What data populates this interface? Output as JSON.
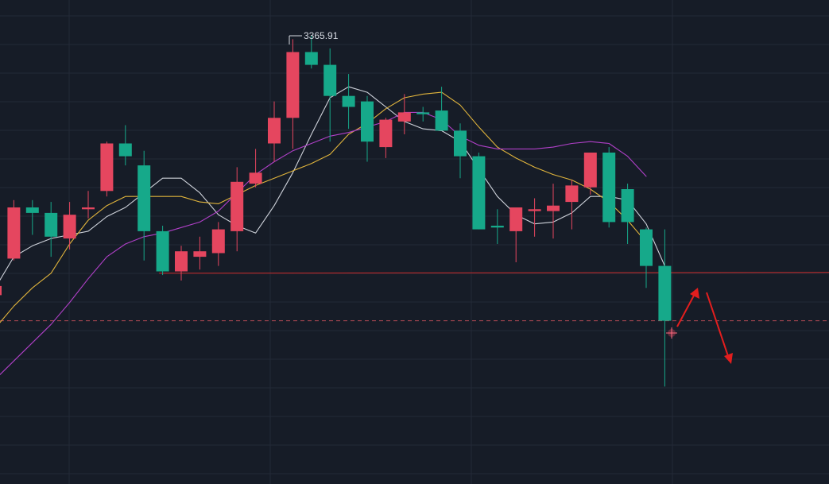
{
  "chart_data": {
    "type": "candlestick",
    "title": "",
    "xlabel": "",
    "ylabel": "",
    "background_color": "#161c27",
    "up_color": "#e5465f",
    "down_color": "#16a98a",
    "peak_label": "3365.91",
    "horizontal_level": {
      "value": 3236,
      "color": "#cc2b2b",
      "style": "solid"
    },
    "current_price_line": {
      "value": 3210,
      "color": "#b54a55",
      "style": "dashed"
    },
    "candles": [
      {
        "open": 3224,
        "high": 3232,
        "low": 3220,
        "close": 3229
      },
      {
        "open": 3244,
        "high": 3276,
        "low": 3243,
        "close": 3272
      },
      {
        "open": 3272,
        "high": 3276,
        "low": 3257,
        "close": 3269
      },
      {
        "open": 3269,
        "high": 3275,
        "low": 3245,
        "close": 3256
      },
      {
        "open": 3255,
        "high": 3275,
        "low": 3249,
        "close": 3268
      },
      {
        "open": 3271,
        "high": 3281,
        "low": 3266,
        "close": 3272
      },
      {
        "open": 3281,
        "high": 3308,
        "low": 3278,
        "close": 3307
      },
      {
        "open": 3307,
        "high": 3317,
        "low": 3295,
        "close": 3300
      },
      {
        "open": 3295,
        "high": 3303,
        "low": 3243,
        "close": 3259
      },
      {
        "open": 3259,
        "high": 3262,
        "low": 3235,
        "close": 3237
      },
      {
        "open": 3237,
        "high": 3251,
        "low": 3232,
        "close": 3248
      },
      {
        "open": 3245,
        "high": 3256,
        "low": 3238,
        "close": 3248
      },
      {
        "open": 3247,
        "high": 3264,
        "low": 3240,
        "close": 3260
      },
      {
        "open": 3259,
        "high": 3294,
        "low": 3248,
        "close": 3286
      },
      {
        "open": 3285,
        "high": 3304,
        "low": 3283,
        "close": 3291
      },
      {
        "open": 3307,
        "high": 3330,
        "low": 3297,
        "close": 3321
      },
      {
        "open": 3321,
        "high": 3364,
        "low": 3304,
        "close": 3357
      },
      {
        "open": 3357,
        "high": 3366,
        "low": 3348,
        "close": 3350
      },
      {
        "open": 3350,
        "high": 3359,
        "low": 3308,
        "close": 3333
      },
      {
        "open": 3333,
        "high": 3345,
        "low": 3315,
        "close": 3327
      },
      {
        "open": 3330,
        "high": 3333,
        "low": 3297,
        "close": 3308
      },
      {
        "open": 3305,
        "high": 3321,
        "low": 3299,
        "close": 3320
      },
      {
        "open": 3319,
        "high": 3334,
        "low": 3312,
        "close": 3324
      },
      {
        "open": 3324,
        "high": 3327,
        "low": 3319,
        "close": 3323
      },
      {
        "open": 3325,
        "high": 3338,
        "low": 3314,
        "close": 3314
      },
      {
        "open": 3314,
        "high": 3318,
        "low": 3288,
        "close": 3300
      },
      {
        "open": 3300,
        "high": 3302,
        "low": 3260,
        "close": 3260
      },
      {
        "open": 3262,
        "high": 3271,
        "low": 3252,
        "close": 3261
      },
      {
        "open": 3259,
        "high": 3272,
        "low": 3242,
        "close": 3272
      },
      {
        "open": 3270,
        "high": 3277,
        "low": 3256,
        "close": 3271
      },
      {
        "open": 3270,
        "high": 3285,
        "low": 3255,
        "close": 3273
      },
      {
        "open": 3275,
        "high": 3287,
        "low": 3260,
        "close": 3284
      },
      {
        "open": 3283,
        "high": 3302,
        "low": 3279,
        "close": 3302
      },
      {
        "open": 3302,
        "high": 3305,
        "low": 3261,
        "close": 3264
      },
      {
        "open": 3282,
        "high": 3285,
        "low": 3252,
        "close": 3264
      },
      {
        "open": 3260,
        "high": 3261,
        "low": 3228,
        "close": 3240
      },
      {
        "open": 3240,
        "high": 3260,
        "low": 3174,
        "close": 3210
      }
    ],
    "ma_lines": [
      {
        "color": "#cfd3db",
        "values": [
          3228,
          3245,
          3251,
          3255,
          3257,
          3259,
          3267,
          3272,
          3280,
          3288,
          3288,
          3280,
          3268,
          3262,
          3258,
          3273,
          3291,
          3312,
          3332,
          3338,
          3335,
          3327,
          3319,
          3315,
          3314,
          3308,
          3293,
          3278,
          3268,
          3263,
          3264,
          3269,
          3278,
          3278,
          3276,
          3263,
          3240
        ]
      },
      {
        "color": "#e0b43c",
        "values": [
          3206,
          3218,
          3228,
          3236,
          3252,
          3265,
          3273,
          3278,
          3278,
          3278,
          3278,
          3275,
          3274,
          3279,
          3284,
          3288,
          3292,
          3296,
          3301,
          3312,
          3318,
          3326,
          3332,
          3334,
          3335,
          3328,
          3316,
          3305,
          3299,
          3294,
          3290,
          3287,
          3282,
          3275,
          3265,
          3253
        ]
      },
      {
        "color": "#b040c8",
        "values": [
          3178,
          3188,
          3198,
          3208,
          3220,
          3233,
          3245,
          3252,
          3256,
          3258,
          3261,
          3264,
          3270,
          3280,
          3290,
          3297,
          3303,
          3307,
          3311,
          3313,
          3316,
          3319,
          3324,
          3324,
          3320,
          3311,
          3306,
          3304,
          3304,
          3304,
          3305,
          3307,
          3308,
          3307,
          3300,
          3289
        ]
      }
    ]
  }
}
